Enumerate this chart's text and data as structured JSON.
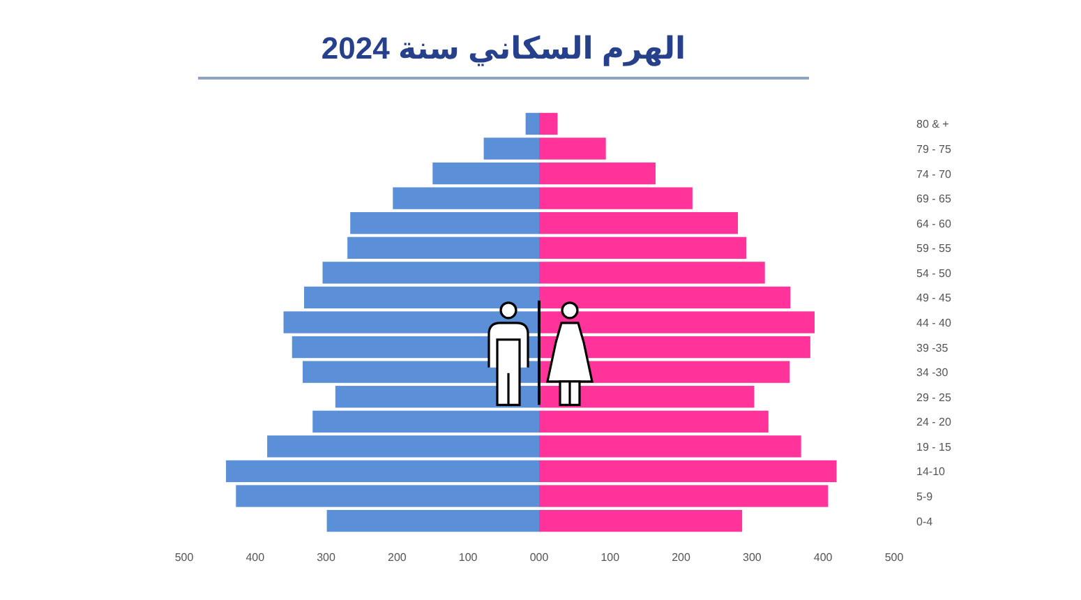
{
  "chart_data": {
    "type": "bar",
    "orientation": "horizontal",
    "title": "الهرم السكاني سنة 2024",
    "categories": [
      "80 & +",
      "79 - 75",
      "74 - 70",
      "69 - 65",
      "64 - 60",
      "59 - 55",
      "54 - 50",
      "49 - 45",
      "44 - 40",
      "39 -35",
      "34 -30",
      "29 - 25",
      "24 - 20",
      "19 - 15",
      "14-10",
      "5-9",
      "0-4"
    ],
    "series": [
      {
        "color": "#5b8fd8",
        "values": [
          -19,
          -78,
          -150,
          -206,
          -266,
          -270,
          -305,
          -331,
          -360,
          -348,
          -333,
          -287,
          -319,
          -383,
          -441,
          -427,
          -299
        ]
      },
      {
        "color": "#ff3399",
        "values": [
          26,
          94,
          164,
          216,
          280,
          292,
          318,
          354,
          388,
          382,
          353,
          303,
          323,
          369,
          419,
          407,
          286
        ]
      }
    ],
    "xlim": [
      -500,
      500
    ],
    "xticks": [
      {
        "value": -500,
        "label": "500"
      },
      {
        "value": -400,
        "label": "400"
      },
      {
        "value": -300,
        "label": "300"
      },
      {
        "value": -200,
        "label": "200"
      },
      {
        "value": -100,
        "label": "100"
      },
      {
        "value": 0,
        "label": "000"
      },
      100,
      200,
      300,
      400,
      500
    ],
    "stacked": true
  }
}
